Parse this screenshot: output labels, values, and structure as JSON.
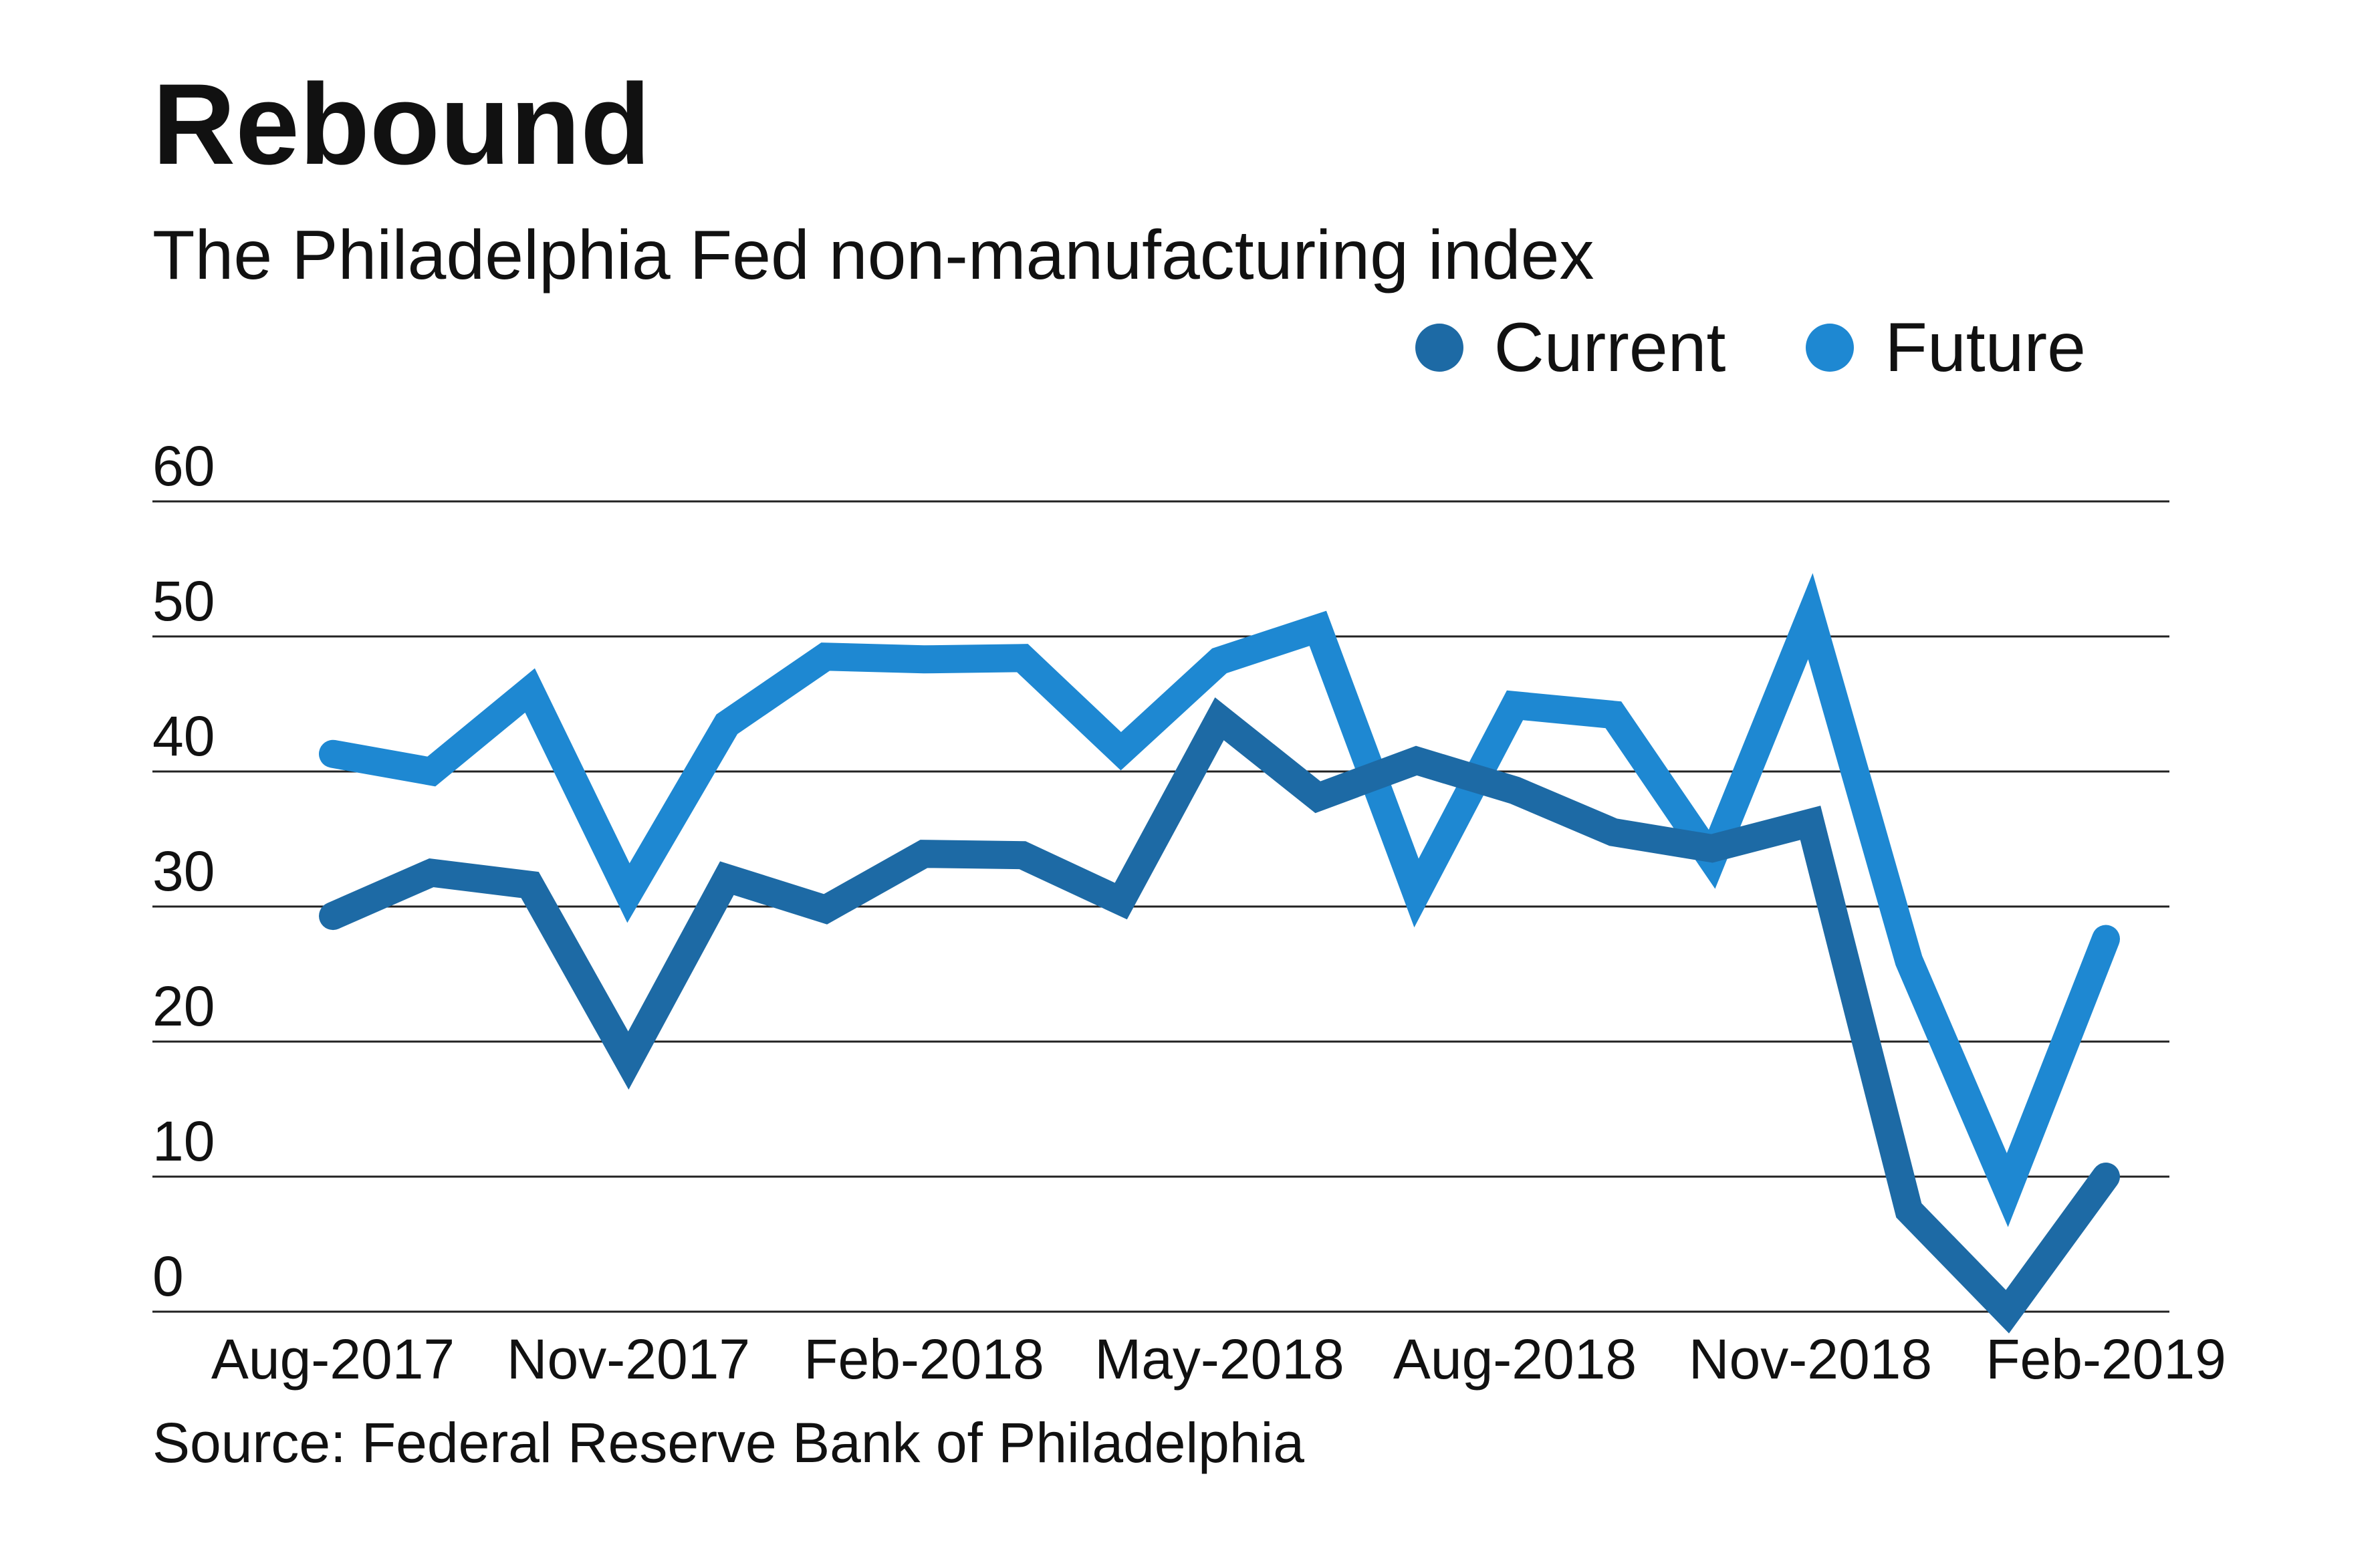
{
  "chart_data": {
    "type": "line",
    "title": "Rebound",
    "subtitle": "The Philadelphia Fed non-manufacturing index",
    "source": "Source: Federal Reserve Bank of Philadelphia",
    "x": [
      "Aug-2017",
      "Sep-2017",
      "Oct-2017",
      "Nov-2017",
      "Dec-2017",
      "Jan-2018",
      "Feb-2018",
      "Mar-2018",
      "Apr-2018",
      "May-2018",
      "Jun-2018",
      "Jul-2018",
      "Aug-2018",
      "Sep-2018",
      "Oct-2018",
      "Nov-2018",
      "Dec-2018",
      "Jan-2019",
      "Feb-2019"
    ],
    "x_tick_labels": [
      "Aug-2017",
      "Nov-2017",
      "Feb-2018",
      "May-2018",
      "Aug-2018",
      "Nov-2018",
      "Feb-2019"
    ],
    "y_ticks": [
      0,
      10,
      20,
      30,
      40,
      50,
      60
    ],
    "ylim": [
      0,
      60
    ],
    "grid": true,
    "legend_position": "top-right",
    "series": [
      {
        "name": "Current",
        "color": "#1d6aa5",
        "values": [
          29.3,
          32.5,
          31.6,
          18.6,
          32.1,
          29.8,
          33.9,
          33.8,
          30.4,
          43.9,
          38.1,
          40.8,
          38.6,
          35.5,
          34.3,
          36.2,
          7.5,
          0.0,
          10.0
        ]
      },
      {
        "name": "Future",
        "color": "#1e88d2",
        "values": [
          41.3,
          40.0,
          46.0,
          31.0,
          43.5,
          48.5,
          48.3,
          48.4,
          41.5,
          48.2,
          50.6,
          31.0,
          44.9,
          44.2,
          33.5,
          51.5,
          26.0,
          9.0,
          27.6
        ]
      }
    ]
  }
}
